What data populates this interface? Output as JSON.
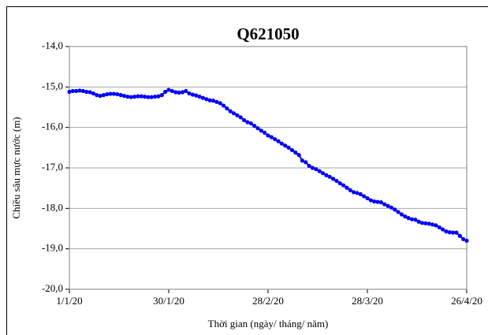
{
  "chart_data": {
    "type": "line",
    "title": "Q621050",
    "xlabel": "Thời gian (ngày/ tháng/ năm)",
    "ylabel": "Chiều sâu mực nước (m)",
    "x": [
      "1/1/20",
      "2/1/20",
      "3/1/20",
      "4/1/20",
      "5/1/20",
      "6/1/20",
      "7/1/20",
      "8/1/20",
      "9/1/20",
      "10/1/20",
      "11/1/20",
      "12/1/20",
      "13/1/20",
      "14/1/20",
      "15/1/20",
      "16/1/20",
      "17/1/20",
      "18/1/20",
      "19/1/20",
      "20/1/20",
      "21/1/20",
      "22/1/20",
      "23/1/20",
      "24/1/20",
      "25/1/20",
      "26/1/20",
      "27/1/20",
      "28/1/20",
      "29/1/20",
      "30/1/20",
      "31/1/20",
      "1/2/20",
      "2/2/20",
      "3/2/20",
      "4/2/20",
      "5/2/20",
      "6/2/20",
      "7/2/20",
      "8/2/20",
      "9/2/20",
      "10/2/20",
      "11/2/20",
      "12/2/20",
      "13/2/20",
      "14/2/20",
      "15/2/20",
      "16/2/20",
      "17/2/20",
      "18/2/20",
      "19/2/20",
      "20/2/20",
      "21/2/20",
      "22/2/20",
      "23/2/20",
      "24/2/20",
      "25/2/20",
      "26/2/20",
      "27/2/20",
      "28/2/20",
      "29/2/20",
      "1/3/20",
      "2/3/20",
      "3/3/20",
      "4/3/20",
      "5/3/20",
      "6/3/20",
      "7/3/20",
      "8/3/20",
      "9/3/20",
      "10/3/20",
      "11/3/20",
      "12/3/20",
      "13/3/20",
      "14/3/20",
      "15/3/20",
      "16/3/20",
      "17/3/20",
      "18/3/20",
      "19/3/20",
      "20/3/20",
      "21/3/20",
      "22/3/20",
      "23/3/20",
      "24/3/20",
      "25/3/20",
      "26/3/20",
      "27/3/20",
      "28/3/20",
      "29/3/20",
      "30/3/20",
      "31/3/20",
      "1/4/20",
      "2/4/20",
      "3/4/20",
      "4/4/20",
      "5/4/20",
      "6/4/20",
      "7/4/20",
      "8/4/20",
      "9/4/20",
      "10/4/20",
      "11/4/20",
      "12/4/20",
      "13/4/20",
      "14/4/20",
      "15/4/20",
      "16/4/20",
      "17/4/20",
      "18/4/20",
      "19/4/20",
      "20/4/20",
      "21/4/20",
      "22/4/20",
      "23/4/20",
      "24/4/20",
      "25/4/20",
      "26/4/20"
    ],
    "series": [
      {
        "name": "Q621050",
        "color": "#0000ff",
        "values": [
          -15.12,
          -15.1,
          -15.1,
          -15.09,
          -15.1,
          -15.12,
          -15.13,
          -15.16,
          -15.2,
          -15.22,
          -15.2,
          -15.18,
          -15.17,
          -15.17,
          -15.18,
          -15.2,
          -15.22,
          -15.24,
          -15.25,
          -15.24,
          -15.23,
          -15.23,
          -15.24,
          -15.25,
          -15.25,
          -15.24,
          -15.23,
          -15.2,
          -15.12,
          -15.07,
          -15.1,
          -15.13,
          -15.14,
          -15.13,
          -15.1,
          -15.16,
          -15.19,
          -15.21,
          -15.24,
          -15.27,
          -15.3,
          -15.33,
          -15.34,
          -15.37,
          -15.4,
          -15.46,
          -15.53,
          -15.6,
          -15.65,
          -15.7,
          -15.75,
          -15.82,
          -15.87,
          -15.9,
          -15.96,
          -16.02,
          -16.08,
          -16.13,
          -16.2,
          -16.24,
          -16.29,
          -16.34,
          -16.4,
          -16.45,
          -16.5,
          -16.56,
          -16.62,
          -16.68,
          -16.82,
          -16.86,
          -16.95,
          -17.0,
          -17.03,
          -17.08,
          -17.13,
          -17.18,
          -17.22,
          -17.27,
          -17.32,
          -17.38,
          -17.43,
          -17.49,
          -17.55,
          -17.6,
          -17.62,
          -17.65,
          -17.7,
          -17.75,
          -17.8,
          -17.83,
          -17.84,
          -17.85,
          -17.9,
          -17.94,
          -17.98,
          -18.03,
          -18.09,
          -18.15,
          -18.2,
          -18.24,
          -18.27,
          -18.28,
          -18.33,
          -18.36,
          -18.37,
          -18.38,
          -18.4,
          -18.42,
          -18.47,
          -18.52,
          -18.57,
          -18.59,
          -18.6,
          -18.6,
          -18.68,
          -18.76,
          -18.8
        ]
      }
    ],
    "xlim": [
      "1/1/20",
      "26/4/20"
    ],
    "xticks": [
      "1/1/20",
      "30/1/20",
      "28/2/20",
      "28/3/20",
      "26/4/20"
    ],
    "ylim": [
      -20,
      -14
    ],
    "yticks": [
      {
        "value": -20,
        "label": "-20,0"
      },
      {
        "value": -19,
        "label": "-19,0"
      },
      {
        "value": -18,
        "label": "-18,0"
      },
      {
        "value": -17,
        "label": "-17,0"
      },
      {
        "value": -16,
        "label": "-16,0"
      },
      {
        "value": -15,
        "label": "-15,0"
      },
      {
        "value": -14,
        "label": "-14,0"
      }
    ],
    "grid": true
  }
}
